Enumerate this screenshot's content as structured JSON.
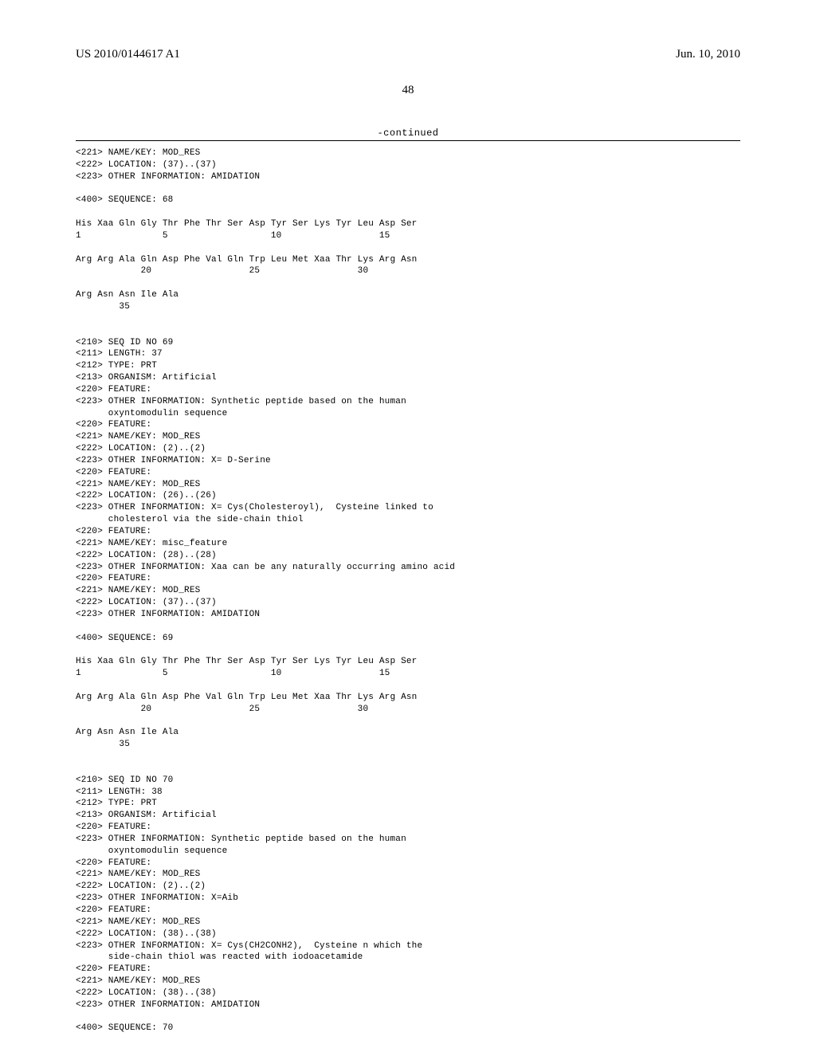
{
  "header": {
    "publication_number": "US 2010/0144617 A1",
    "publication_date": "Jun. 10, 2010"
  },
  "page_number": "48",
  "continued_label": "-continued",
  "font": {
    "header_family": "Times New Roman",
    "body_family": "Courier New",
    "header_size_pt": 11,
    "body_size_pt": 8,
    "page_num_size_pt": 11
  },
  "colors": {
    "text": "#000000",
    "background": "#ffffff",
    "rule": "#000000"
  },
  "listing": {
    "lines": [
      "<221> NAME/KEY: MOD_RES",
      "<222> LOCATION: (37)..(37)",
      "<223> OTHER INFORMATION: AMIDATION",
      "",
      "<400> SEQUENCE: 68",
      "",
      "His Xaa Gln Gly Thr Phe Thr Ser Asp Tyr Ser Lys Tyr Leu Asp Ser",
      "1               5                   10                  15",
      "",
      "Arg Arg Ala Gln Asp Phe Val Gln Trp Leu Met Xaa Thr Lys Arg Asn",
      "            20                  25                  30",
      "",
      "Arg Asn Asn Ile Ala",
      "        35",
      "",
      "",
      "<210> SEQ ID NO 69",
      "<211> LENGTH: 37",
      "<212> TYPE: PRT",
      "<213> ORGANISM: Artificial",
      "<220> FEATURE:",
      "<223> OTHER INFORMATION: Synthetic peptide based on the human",
      "      oxyntomodulin sequence",
      "<220> FEATURE:",
      "<221> NAME/KEY: MOD_RES",
      "<222> LOCATION: (2)..(2)",
      "<223> OTHER INFORMATION: X= D-Serine",
      "<220> FEATURE:",
      "<221> NAME/KEY: MOD_RES",
      "<222> LOCATION: (26)..(26)",
      "<223> OTHER INFORMATION: X= Cys(Cholesteroyl),  Cysteine linked to",
      "      cholesterol via the side-chain thiol",
      "<220> FEATURE:",
      "<221> NAME/KEY: misc_feature",
      "<222> LOCATION: (28)..(28)",
      "<223> OTHER INFORMATION: Xaa can be any naturally occurring amino acid",
      "<220> FEATURE:",
      "<221> NAME/KEY: MOD_RES",
      "<222> LOCATION: (37)..(37)",
      "<223> OTHER INFORMATION: AMIDATION",
      "",
      "<400> SEQUENCE: 69",
      "",
      "His Xaa Gln Gly Thr Phe Thr Ser Asp Tyr Ser Lys Tyr Leu Asp Ser",
      "1               5                   10                  15",
      "",
      "Arg Arg Ala Gln Asp Phe Val Gln Trp Leu Met Xaa Thr Lys Arg Asn",
      "            20                  25                  30",
      "",
      "Arg Asn Asn Ile Ala",
      "        35",
      "",
      "",
      "<210> SEQ ID NO 70",
      "<211> LENGTH: 38",
      "<212> TYPE: PRT",
      "<213> ORGANISM: Artificial",
      "<220> FEATURE:",
      "<223> OTHER INFORMATION: Synthetic peptide based on the human",
      "      oxyntomodulin sequence",
      "<220> FEATURE:",
      "<221> NAME/KEY: MOD_RES",
      "<222> LOCATION: (2)..(2)",
      "<223> OTHER INFORMATION: X=Aib",
      "<220> FEATURE:",
      "<221> NAME/KEY: MOD_RES",
      "<222> LOCATION: (38)..(38)",
      "<223> OTHER INFORMATION: X= Cys(CH2CONH2),  Cysteine n which the",
      "      side-chain thiol was reacted with iodoacetamide",
      "<220> FEATURE:",
      "<221> NAME/KEY: MOD_RES",
      "<222> LOCATION: (38)..(38)",
      "<223> OTHER INFORMATION: AMIDATION",
      "",
      "<400> SEQUENCE: 70"
    ]
  }
}
